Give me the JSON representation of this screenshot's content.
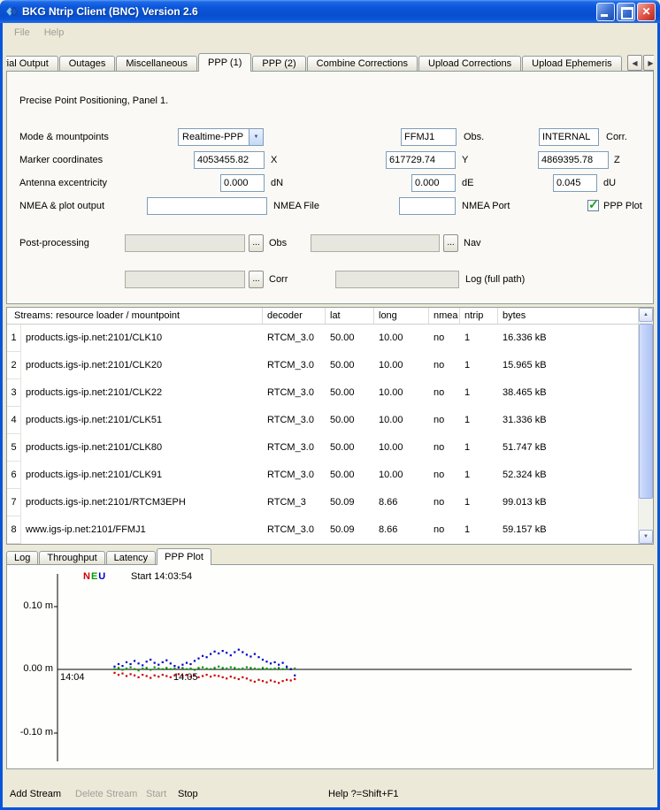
{
  "window": {
    "title": "BKG Ntrip Client (BNC) Version 2.6",
    "menu": {
      "file": "File",
      "help": "Help"
    }
  },
  "icons": {
    "tab_scroll_left": "◀",
    "tab_scroll_right": "▶",
    "combo_arrow": "▼",
    "scroll_up": "▲",
    "scroll_down": "▼",
    "check": "✓",
    "browse": "..."
  },
  "tabs": {
    "items": [
      "rial Output",
      "Outages",
      "Miscellaneous",
      "PPP (1)",
      "PPP (2)",
      "Combine Corrections",
      "Upload Corrections",
      "Upload Ephemeris"
    ],
    "selected": "PPP (1)"
  },
  "ppp_panel": {
    "heading": "Precise Point Positioning, Panel 1.",
    "mode_label": "Mode & mountpoints",
    "mode_value": "Realtime-PPP",
    "obs_value": "FFMJ1",
    "obs_label": "Obs.",
    "corr_value": "INTERNAL",
    "corr_label": "Corr.",
    "marker_label": "Marker coordinates",
    "x_value": "4053455.82",
    "x_label": "X",
    "y_value": "617729.74",
    "y_label": "Y",
    "z_value": "4869395.78",
    "z_label": "Z",
    "antenna_label": "Antenna excentricity",
    "dn_value": "0.000",
    "dn_label": "dN",
    "de_value": "0.000",
    "de_label": "dE",
    "du_value": "0.045",
    "du_label": "dU",
    "nmea_label": "NMEA & plot output",
    "nmea_file_value": "",
    "nmea_file_label": "NMEA File",
    "nmea_port_value": "",
    "nmea_port_label": "NMEA Port",
    "ppp_plot_checkbox_label": "PPP Plot",
    "ppp_plot_checked": true,
    "postproc_label": "Post-processing",
    "pp_obs_value": "",
    "pp_obs_label": "Obs",
    "pp_nav_value": "",
    "pp_nav_label": "Nav",
    "pp_corr_value": "",
    "pp_corr_label": "Corr",
    "pp_log_value": "",
    "pp_log_label": "Log (full path)"
  },
  "streams": {
    "header": [
      "Streams:  resource loader / mountpoint",
      "decoder",
      "lat",
      "long",
      "nmea",
      "ntrip",
      "bytes"
    ],
    "rows": [
      {
        "n": "1",
        "mountpoint": "products.igs-ip.net:2101/CLK10",
        "decoder": "RTCM_3.0",
        "lat": "50.00",
        "long": "10.00",
        "nmea": "no",
        "ntrip": "1",
        "bytes": "16.336 kB"
      },
      {
        "n": "2",
        "mountpoint": "products.igs-ip.net:2101/CLK20",
        "decoder": "RTCM_3.0",
        "lat": "50.00",
        "long": "10.00",
        "nmea": "no",
        "ntrip": "1",
        "bytes": "15.965 kB"
      },
      {
        "n": "3",
        "mountpoint": "products.igs-ip.net:2101/CLK22",
        "decoder": "RTCM_3.0",
        "lat": "50.00",
        "long": "10.00",
        "nmea": "no",
        "ntrip": "1",
        "bytes": "38.465 kB"
      },
      {
        "n": "4",
        "mountpoint": "products.igs-ip.net:2101/CLK51",
        "decoder": "RTCM_3.0",
        "lat": "50.00",
        "long": "10.00",
        "nmea": "no",
        "ntrip": "1",
        "bytes": "31.336 kB"
      },
      {
        "n": "5",
        "mountpoint": "products.igs-ip.net:2101/CLK80",
        "decoder": "RTCM_3.0",
        "lat": "50.00",
        "long": "10.00",
        "nmea": "no",
        "ntrip": "1",
        "bytes": "51.747 kB"
      },
      {
        "n": "6",
        "mountpoint": "products.igs-ip.net:2101/CLK91",
        "decoder": "RTCM_3.0",
        "lat": "50.00",
        "long": "10.00",
        "nmea": "no",
        "ntrip": "1",
        "bytes": "52.324 kB"
      },
      {
        "n": "7",
        "mountpoint": "products.igs-ip.net:2101/RTCM3EPH",
        "decoder": "RTCM_3",
        "lat": "50.09",
        "long": "8.66",
        "nmea": "no",
        "ntrip": "1",
        "bytes": "99.013 kB"
      },
      {
        "n": "8",
        "mountpoint": "www.igs-ip.net:2101/FFMJ1",
        "decoder": "RTCM_3.0",
        "lat": "50.09",
        "long": "8.66",
        "nmea": "no",
        "ntrip": "1",
        "bytes": "59.157 kB"
      }
    ]
  },
  "bottom_tabs": {
    "items": [
      "Log",
      "Throughput",
      "Latency",
      "PPP Plot"
    ],
    "selected": "PPP Plot"
  },
  "chart_data": {
    "type": "scatter",
    "title": "PPP Plot",
    "start_label": "Start 14:03:54",
    "legend": [
      {
        "label": "N",
        "color": "#CC0000"
      },
      {
        "label": "E",
        "color": "#009900"
      },
      {
        "label": "U",
        "color": "#0000CC"
      }
    ],
    "y_ticks": [
      "0.10 m",
      "0.00 m",
      "-0.10 m"
    ],
    "y_tick_values": [
      0.1,
      0.0,
      -0.1
    ],
    "x_ticks": [
      "14:04",
      "14:05"
    ],
    "ylabel_unit": "m",
    "ylim": [
      -0.15,
      0.15
    ],
    "t0_minutes": 0.48,
    "dt_minutes": 0.0343,
    "series": [
      {
        "name": "N",
        "color": "#CC0000",
        "values": [
          -0.004,
          -0.007,
          -0.005,
          -0.009,
          -0.006,
          -0.008,
          -0.011,
          -0.007,
          -0.009,
          -0.012,
          -0.008,
          -0.01,
          -0.007,
          -0.009,
          -0.011,
          -0.008,
          -0.006,
          -0.009,
          -0.007,
          -0.01,
          -0.008,
          -0.011,
          -0.009,
          -0.007,
          -0.01,
          -0.008,
          -0.009,
          -0.011,
          -0.013,
          -0.01,
          -0.012,
          -0.014,
          -0.011,
          -0.013,
          -0.016,
          -0.018,
          -0.015,
          -0.017,
          -0.019,
          -0.016,
          -0.018,
          -0.02,
          -0.017,
          -0.015,
          -0.016,
          -0.014
        ]
      },
      {
        "name": "E",
        "color": "#009900",
        "values": [
          0.002,
          0.004,
          0.001,
          0.003,
          0.005,
          0.002,
          0.0,
          0.003,
          0.004,
          0.001,
          0.005,
          0.003,
          0.002,
          0.004,
          0.002,
          0.003,
          0.005,
          0.004,
          0.002,
          0.003,
          0.001,
          0.004,
          0.005,
          0.003,
          0.002,
          0.004,
          0.006,
          0.004,
          0.003,
          0.005,
          0.004,
          0.002,
          0.003,
          0.005,
          0.004,
          0.003,
          0.002,
          0.004,
          0.003,
          0.002,
          0.003,
          0.004,
          0.002,
          0.003,
          0.002,
          0.003
        ]
      },
      {
        "name": "U",
        "color": "#0000CC",
        "values": [
          0.006,
          0.01,
          0.007,
          0.013,
          0.01,
          0.015,
          0.011,
          0.008,
          0.014,
          0.017,
          0.012,
          0.009,
          0.013,
          0.016,
          0.011,
          0.007,
          0.005,
          0.009,
          0.012,
          0.01,
          0.015,
          0.019,
          0.023,
          0.021,
          0.026,
          0.03,
          0.027,
          0.031,
          0.028,
          0.024,
          0.029,
          0.033,
          0.029,
          0.025,
          0.022,
          0.026,
          0.021,
          0.017,
          0.014,
          0.011,
          0.013,
          0.009,
          0.012,
          0.006,
          0.002,
          -0.008
        ]
      }
    ]
  },
  "statusbar": {
    "add_stream": "Add Stream",
    "delete_stream": "Delete Stream",
    "start": "Start",
    "stop": "Stop",
    "help": "Help ?=Shift+F1"
  },
  "colors": {
    "titlebar_blue": "#0855DD",
    "window_bg": "#ECE9D8",
    "field_border": "#7F9DB9",
    "check_green": "#17A217"
  }
}
